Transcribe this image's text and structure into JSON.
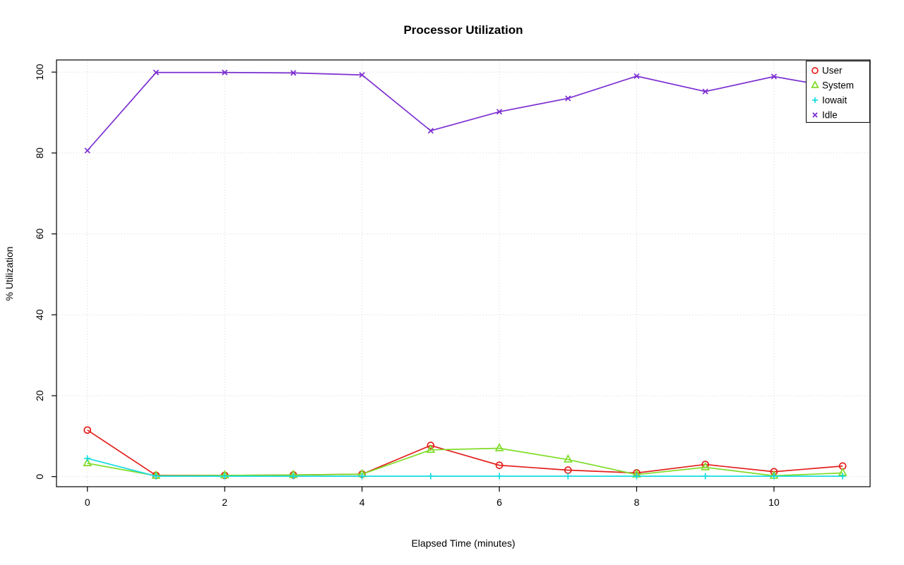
{
  "title": "Processor Utilization",
  "chart_data": {
    "type": "line",
    "title": "Processor Utilization",
    "xlabel": "Elapsed Time (minutes)",
    "ylabel": "% Utilization",
    "x": [
      0,
      1,
      2,
      3,
      4,
      5,
      6,
      7,
      8,
      9,
      10,
      11
    ],
    "series": [
      {
        "name": "User",
        "color": "#e3211d",
        "marker": "circle",
        "values": [
          11.5,
          0.3,
          0.3,
          0.4,
          0.6,
          7.7,
          2.8,
          1.6,
          0.9,
          3.0,
          1.2,
          2.6
        ]
      },
      {
        "name": "System",
        "color": "#7fdc28",
        "marker": "triangle",
        "values": [
          3.3,
          0.2,
          0.3,
          0.4,
          0.6,
          6.6,
          7.0,
          4.2,
          0.5,
          2.3,
          0.2,
          0.9
        ]
      },
      {
        "name": "Iowait",
        "color": "#15dbe0",
        "marker": "plus",
        "values": [
          4.5,
          0.1,
          0.1,
          0.1,
          0.1,
          0.1,
          0.1,
          0.1,
          0.1,
          0.1,
          0.1,
          0.1
        ]
      },
      {
        "name": "Idle",
        "color": "#7c2fd1",
        "marker": "x",
        "values": [
          80.6,
          99.9,
          99.9,
          99.8,
          99.3,
          85.5,
          90.2,
          93.5,
          99.0,
          95.2,
          98.9,
          95.9
        ]
      }
    ],
    "xticks": [
      0,
      2,
      4,
      6,
      8,
      10
    ],
    "yticks": [
      0,
      20,
      40,
      60,
      80,
      100
    ],
    "xlim": [
      -0.45,
      11.4
    ],
    "ylim": [
      -2.5,
      103
    ],
    "grid": "dotted",
    "grid_color": "#d4d4d4",
    "legend_position": "top-right",
    "legend": [
      "User",
      "System",
      "Iowait",
      "Idle"
    ]
  }
}
